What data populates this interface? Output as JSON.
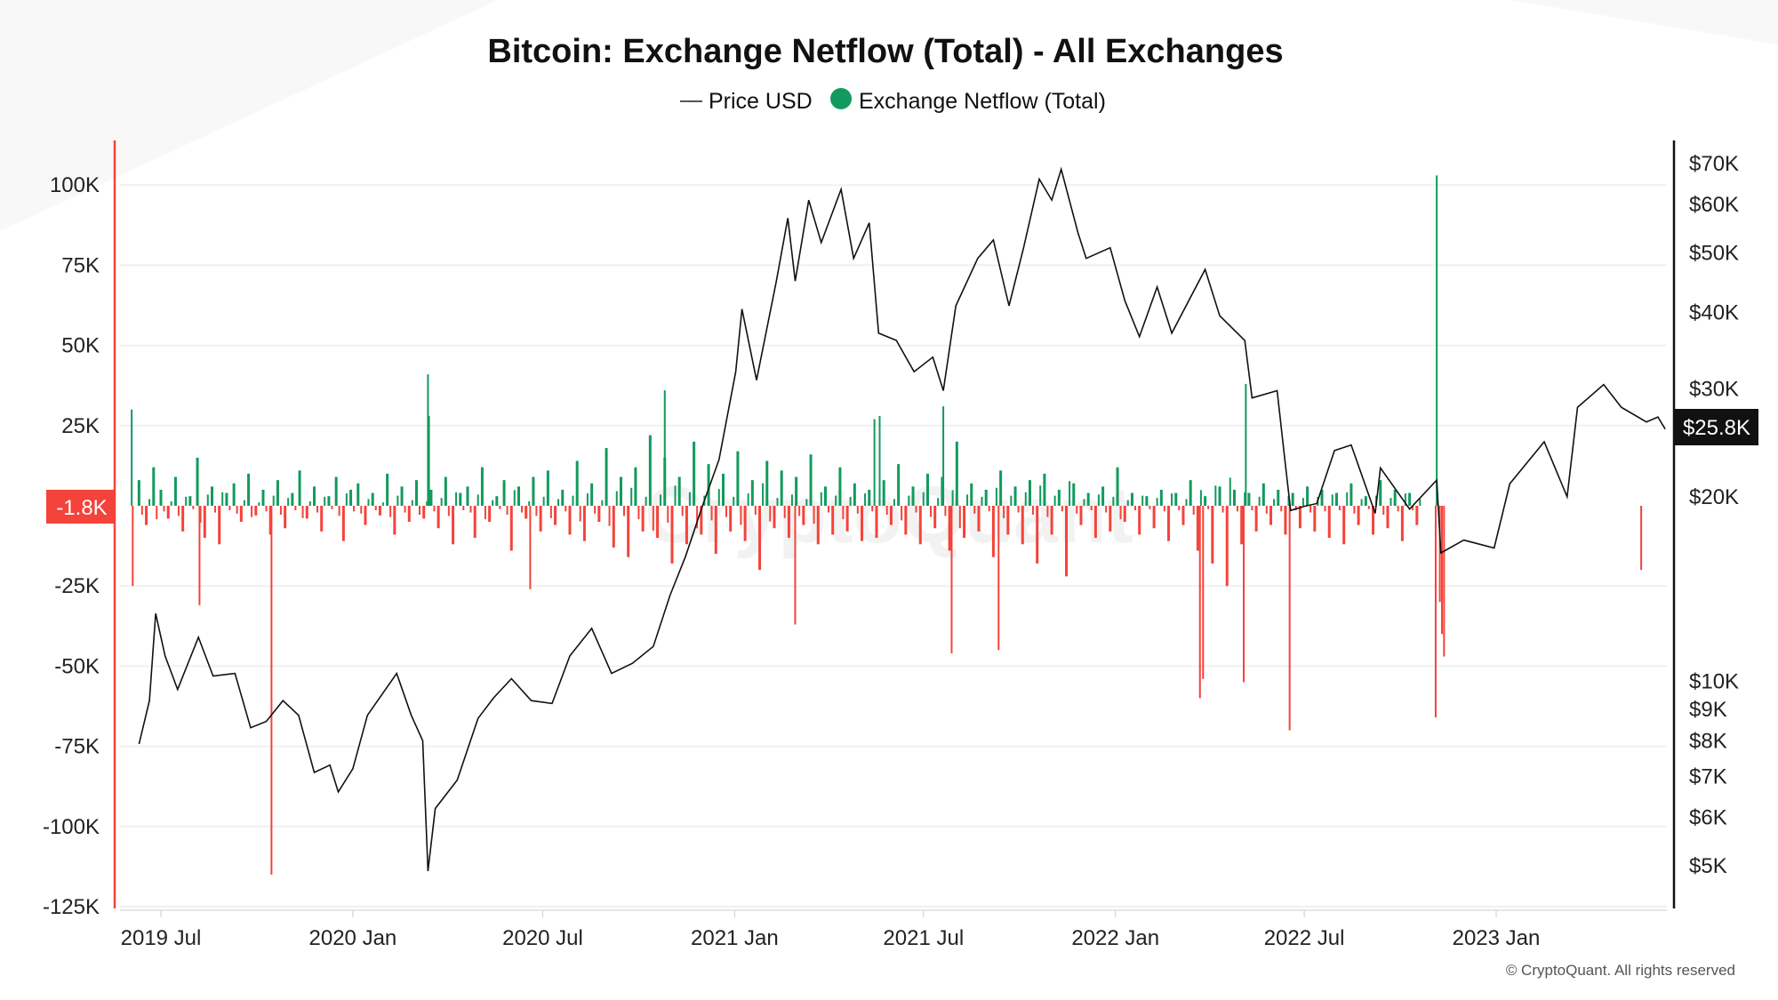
{
  "chart_data": {
    "type": "bar+line",
    "title": "Bitcoin: Exchange Netflow (Total) - All Exchanges",
    "legend": [
      {
        "label": "Price USD",
        "color": "#444444",
        "marker": "line"
      },
      {
        "label": "Exchange Netflow (Total)",
        "color": "#129a5e",
        "marker": "circle"
      }
    ],
    "legend_placement": "top-center",
    "colors": {
      "positive": "#129a5e",
      "negative": "#f4433a",
      "price": "#111111",
      "left_axis": "#f4433a",
      "right_axis": "#111111"
    },
    "left_axis": {
      "ylim_k": [
        -125,
        110
      ],
      "ticks": [
        "100K",
        "75K",
        "50K",
        "25K",
        "-25K",
        "-50K",
        "-75K",
        "-100K",
        "-125K"
      ],
      "tick_values_k": [
        100,
        75,
        50,
        25,
        -25,
        -50,
        -75,
        -100,
        -125
      ],
      "current_label": "-1.8K",
      "current_value_k": -1.8
    },
    "right_axis": {
      "scale": "log",
      "ticks": [
        "$70K",
        "$60K",
        "$50K",
        "$40K",
        "$30K",
        "$20K",
        "$10K",
        "$9K",
        "$8K",
        "$7K",
        "$6K",
        "$5K"
      ],
      "tick_values": [
        70000,
        60000,
        50000,
        40000,
        30000,
        20000,
        10000,
        9000,
        8000,
        7000,
        6000,
        5000
      ],
      "current_label": "$25.8K",
      "current_value": 25800
    },
    "x_axis": {
      "ticks": [
        "2019 Jul",
        "2020 Jan",
        "2020 Jul",
        "2021 Jan",
        "2021 Jul",
        "2022 Jan",
        "2022 Jul",
        "2023 Jan"
      ],
      "tick_dates": [
        "2019-07-01",
        "2020-01-01",
        "2020-07-01",
        "2021-01-01",
        "2021-07-01",
        "2022-01-01",
        "2022-07-01",
        "2023-01-01"
      ],
      "range": [
        "2019-06-08",
        "2023-06-14"
      ]
    },
    "price_series": [
      [
        "2019-06-10",
        7900
      ],
      [
        "2019-06-20",
        9300
      ],
      [
        "2019-06-26",
        12900
      ],
      [
        "2019-07-05",
        11000
      ],
      [
        "2019-07-17",
        9700
      ],
      [
        "2019-08-06",
        11800
      ],
      [
        "2019-08-20",
        10200
      ],
      [
        "2019-09-10",
        10300
      ],
      [
        "2019-09-25",
        8400
      ],
      [
        "2019-10-10",
        8600
      ],
      [
        "2019-10-26",
        9300
      ],
      [
        "2019-11-10",
        8800
      ],
      [
        "2019-11-25",
        7100
      ],
      [
        "2019-12-10",
        7300
      ],
      [
        "2019-12-18",
        6600
      ],
      [
        "2020-01-01",
        7200
      ],
      [
        "2020-01-15",
        8800
      ],
      [
        "2020-02-12",
        10300
      ],
      [
        "2020-02-26",
        8800
      ],
      [
        "2020-03-08",
        8000
      ],
      [
        "2020-03-13",
        4900
      ],
      [
        "2020-03-20",
        6200
      ],
      [
        "2020-04-10",
        6900
      ],
      [
        "2020-04-30",
        8700
      ],
      [
        "2020-05-15",
        9400
      ],
      [
        "2020-06-01",
        10100
      ],
      [
        "2020-06-20",
        9300
      ],
      [
        "2020-07-10",
        9200
      ],
      [
        "2020-07-27",
        11000
      ],
      [
        "2020-08-17",
        12200
      ],
      [
        "2020-09-05",
        10300
      ],
      [
        "2020-09-25",
        10700
      ],
      [
        "2020-10-15",
        11400
      ],
      [
        "2020-10-31",
        13800
      ],
      [
        "2020-11-15",
        16000
      ],
      [
        "2020-12-01",
        19300
      ],
      [
        "2020-12-17",
        23000
      ],
      [
        "2021-01-02",
        32000
      ],
      [
        "2021-01-08",
        40500
      ],
      [
        "2021-01-22",
        31000
      ],
      [
        "2021-02-10",
        45000
      ],
      [
        "2021-02-21",
        57000
      ],
      [
        "2021-02-28",
        45000
      ],
      [
        "2021-03-13",
        61000
      ],
      [
        "2021-03-25",
        52000
      ],
      [
        "2021-04-13",
        63500
      ],
      [
        "2021-04-25",
        49000
      ],
      [
        "2021-05-10",
        56000
      ],
      [
        "2021-05-19",
        37000
      ],
      [
        "2021-06-05",
        36000
      ],
      [
        "2021-06-22",
        32000
      ],
      [
        "2021-07-10",
        33800
      ],
      [
        "2021-07-20",
        29800
      ],
      [
        "2021-08-01",
        41000
      ],
      [
        "2021-08-22",
        49000
      ],
      [
        "2021-09-06",
        52500
      ],
      [
        "2021-09-21",
        41000
      ],
      [
        "2021-10-05",
        51000
      ],
      [
        "2021-10-20",
        66000
      ],
      [
        "2021-11-01",
        61000
      ],
      [
        "2021-11-10",
        68500
      ],
      [
        "2021-11-26",
        54000
      ],
      [
        "2021-12-04",
        49000
      ],
      [
        "2021-12-27",
        51000
      ],
      [
        "2022-01-10",
        41800
      ],
      [
        "2022-01-24",
        36500
      ],
      [
        "2022-02-10",
        44000
      ],
      [
        "2022-02-24",
        37000
      ],
      [
        "2022-03-28",
        47000
      ],
      [
        "2022-04-11",
        39500
      ],
      [
        "2022-05-05",
        36000
      ],
      [
        "2022-05-12",
        29000
      ],
      [
        "2022-06-05",
        29800
      ],
      [
        "2022-06-13",
        22500
      ],
      [
        "2022-06-18",
        19000
      ],
      [
        "2022-07-01",
        19300
      ],
      [
        "2022-07-13",
        19500
      ],
      [
        "2022-07-30",
        23800
      ],
      [
        "2022-08-15",
        24300
      ],
      [
        "2022-09-07",
        18800
      ],
      [
        "2022-09-12",
        22300
      ],
      [
        "2022-10-10",
        19100
      ],
      [
        "2022-11-05",
        21300
      ],
      [
        "2022-11-09",
        16200
      ],
      [
        "2022-12-01",
        17000
      ],
      [
        "2022-12-30",
        16500
      ],
      [
        "2023-01-14",
        21000
      ],
      [
        "2023-02-16",
        24600
      ],
      [
        "2023-03-10",
        20000
      ],
      [
        "2023-03-20",
        28000
      ],
      [
        "2023-04-14",
        30500
      ],
      [
        "2023-05-01",
        28000
      ],
      [
        "2023-05-25",
        26500
      ],
      [
        "2023-06-05",
        27000
      ],
      [
        "2023-06-12",
        25800
      ]
    ],
    "netflow_weekly_start": "2019-06-10",
    "netflow_weekly_k": [
      8,
      -6,
      12,
      5,
      -4,
      9,
      -8,
      3,
      15,
      -10,
      6,
      -12,
      4,
      7,
      -5,
      10,
      -3,
      5,
      -9,
      8,
      -7,
      4,
      11,
      -4,
      6,
      -8,
      3,
      9,
      -11,
      5,
      7,
      -6,
      4,
      -3,
      10,
      -9,
      6,
      -5,
      8,
      -4,
      5,
      -7,
      9,
      -12,
      4,
      6,
      -10,
      12,
      -5,
      3,
      8,
      -14,
      6,
      -4,
      9,
      -8,
      11,
      -6,
      5,
      -9,
      14,
      -11,
      7,
      -5,
      18,
      -13,
      9,
      -16,
      12,
      -8,
      22,
      -10,
      15,
      -18,
      9,
      -12,
      20,
      -9,
      13,
      -15,
      10,
      -8,
      17,
      -11,
      8,
      -20,
      14,
      -7,
      11,
      -10,
      9,
      -6,
      16,
      -12,
      6,
      -9,
      12,
      -8,
      7,
      -11,
      5,
      -10,
      8,
      -6,
      13,
      -9,
      6,
      -12,
      10,
      -7,
      9,
      -14,
      20,
      -10,
      7,
      -8,
      5,
      -16,
      11,
      -9,
      6,
      -12,
      8,
      -18,
      10,
      -9,
      5,
      -22,
      7,
      -6,
      4,
      -10,
      6,
      -8,
      12,
      -5,
      4,
      -9,
      3,
      -7,
      5,
      -11,
      4,
      -6,
      8,
      -14,
      3,
      -18,
      6,
      -25,
      5,
      -12,
      4,
      -8,
      7,
      -6,
      5,
      -9,
      4,
      -7,
      6,
      -8,
      5,
      -10,
      4,
      -12,
      7,
      -6,
      3,
      -9,
      8,
      -7,
      5,
      -11,
      4,
      -6
    ],
    "netflow_spikes_k": [
      [
        "2019-06-03",
        30
      ],
      [
        "2019-06-04",
        -25
      ],
      [
        "2019-08-07",
        -31
      ],
      [
        "2019-10-15",
        -115
      ],
      [
        "2020-03-13",
        41
      ],
      [
        "2020-03-14",
        28
      ],
      [
        "2020-06-19",
        -26
      ],
      [
        "2020-10-26",
        36
      ],
      [
        "2021-02-28",
        -37
      ],
      [
        "2021-05-15",
        27
      ],
      [
        "2021-05-20",
        28
      ],
      [
        "2021-07-28",
        -46
      ],
      [
        "2021-07-20",
        31
      ],
      [
        "2021-09-11",
        -45
      ],
      [
        "2022-03-23",
        -60
      ],
      [
        "2022-03-26",
        -54
      ],
      [
        "2022-05-04",
        -55
      ],
      [
        "2022-05-06",
        38
      ],
      [
        "2022-06-17",
        -70
      ],
      [
        "2022-11-05",
        103
      ],
      [
        "2022-11-04",
        -66
      ],
      [
        "2022-11-12",
        -47
      ],
      [
        "2022-11-10",
        -40
      ],
      [
        "2022-11-08",
        -30
      ],
      [
        "2023-05-20",
        -20
      ]
    ],
    "watermark": "CryptoQuant",
    "copyright": "© CryptoQuant. All rights reserved"
  }
}
